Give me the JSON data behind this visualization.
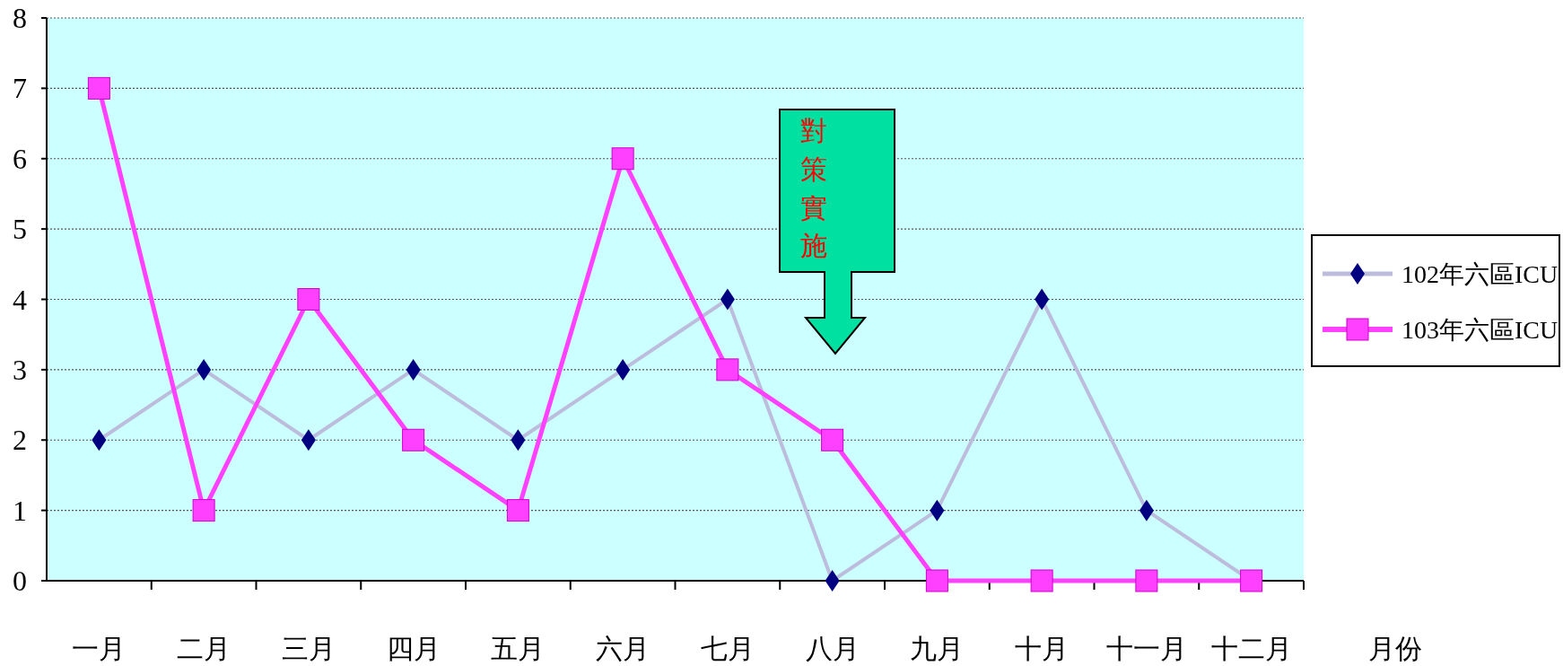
{
  "chart_data": {
    "type": "line",
    "categories": [
      "一月",
      "二月",
      "三月",
      "四月",
      "五月",
      "六月",
      "七月",
      "八月",
      "九月",
      "十月",
      "十一月",
      "十二月"
    ],
    "xlabel": "月份",
    "series": [
      {
        "name": "102年六區ICU",
        "color": "#bcbcdc",
        "marker": "diamond",
        "values": [
          2,
          3,
          2,
          3,
          2,
          3,
          4,
          0,
          1,
          4,
          1,
          0
        ]
      },
      {
        "name": "103年六區ICU",
        "color": "#ff40ff",
        "marker": "square",
        "values": [
          7,
          1,
          4,
          2,
          1,
          6,
          3,
          2,
          0,
          0,
          0,
          0
        ]
      }
    ],
    "ylim": [
      0,
      8
    ],
    "yticks": [
      0,
      1,
      2,
      3,
      4,
      5,
      6,
      7,
      8
    ],
    "grid": "y",
    "legend": "right",
    "annotations": [
      "對策實施"
    ]
  }
}
